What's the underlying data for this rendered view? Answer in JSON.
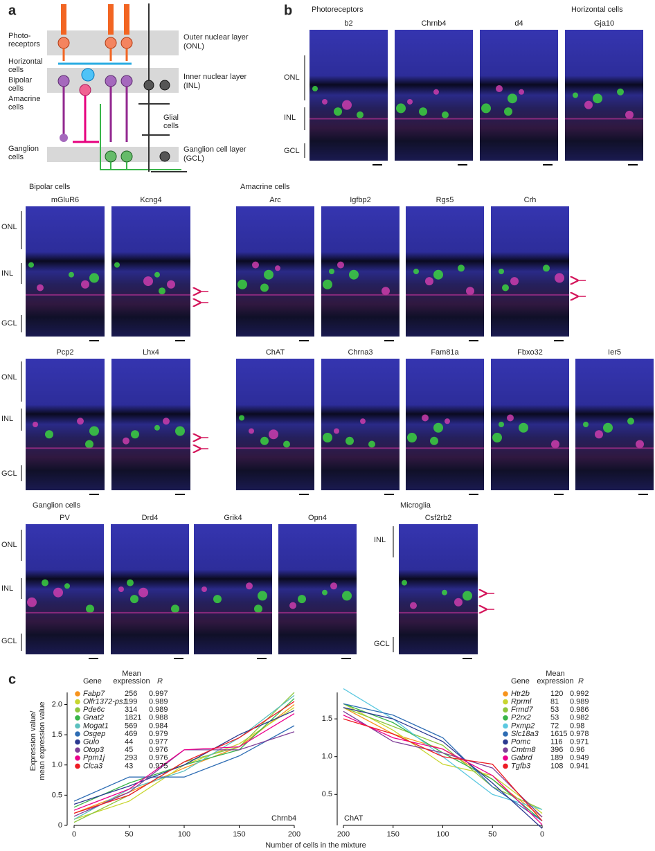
{
  "panel_a": {
    "label": "a",
    "cell_types": [
      [
        "Photo-",
        "receptors"
      ],
      [
        "Horizontal",
        "cells"
      ],
      [
        "Bipolar",
        "cells"
      ],
      [
        "Amacrine",
        "cells"
      ],
      [
        "Ganglion",
        "cells"
      ],
      [
        "Glial",
        "cells"
      ]
    ],
    "layers": [
      [
        "Outer nuclear layer",
        "(ONL)"
      ],
      [
        "Inner nuclear layer",
        "(INL)"
      ],
      [
        "Ganglion cell layer",
        "(GCL)"
      ]
    ]
  },
  "panel_b": {
    "label": "b",
    "layer_labels": [
      "ONL",
      "INL",
      "GCL"
    ],
    "rows": [
      [
        {
          "title": "Photoreceptors",
          "genes": [
            "b2",
            "Chrnb4",
            "d4"
          ]
        },
        {
          "title": "Horizontal cells",
          "genes": [
            "Gja10"
          ]
        }
      ],
      [
        {
          "title": "Bipolar cells",
          "genes": [
            "mGluR6",
            "Kcng4"
          ]
        },
        {
          "title": "Amacrine cells",
          "genes": [
            "Arc",
            "Igfbp2",
            "Rgs5",
            "Crh"
          ]
        }
      ],
      [
        {
          "genes": [
            "Pcp2",
            "Lhx4"
          ]
        },
        {
          "genes": [
            "ChAT",
            "Chrna3",
            "Fam81a",
            "Fbxo32",
            "Ier5"
          ]
        }
      ],
      [
        {
          "title": "Ganglion cells",
          "genes": [
            "PV",
            "Drd4",
            "Grik4",
            "Opn4"
          ]
        },
        {
          "title": "Microglia",
          "genes": [
            "Csf2rb2"
          ]
        }
      ]
    ]
  },
  "panel_c": {
    "label": "c",
    "y_label": [
      "Expression value/",
      "mean expression value"
    ],
    "x_label": "Number of cells in the mixture",
    "table_header": [
      "Gene",
      [
        "Mean",
        "expression"
      ],
      "R"
    ],
    "charts": [
      {
        "type": "line",
        "annotation": "Chrnb4",
        "x": [
          0,
          50,
          100,
          150,
          200
        ],
        "xlim": [
          0,
          200
        ],
        "xticks": [
          0,
          50,
          100,
          150,
          200
        ],
        "ylim": [
          0,
          2.2
        ],
        "yticks": [
          0,
          0.5,
          {
            "value": 1,
            "label": "1.0"
          },
          1.5,
          {
            "value": 2,
            "label": "2.0"
          }
        ],
        "series": [
          {
            "name": "Fabp7",
            "mean_expression": 256,
            "R": 0.997,
            "color": "#f7941d",
            "values": [
              0.2,
              0.55,
              0.95,
              1.3,
              2.0
            ]
          },
          {
            "name": "Olfr1372-ps1",
            "mean_expression": 199,
            "R": 0.989,
            "color": "#c8d630",
            "values": [
              0.1,
              0.4,
              1.0,
              1.35,
              1.95
            ]
          },
          {
            "name": "Pde6c",
            "mean_expression": 314,
            "R": 0.989,
            "color": "#8dc63f",
            "values": [
              0.05,
              0.5,
              1.05,
              1.3,
              2.2
            ]
          },
          {
            "name": "Gnat2",
            "mean_expression": 1821,
            "R": 0.988,
            "color": "#39b54a",
            "values": [
              0.3,
              0.7,
              1.0,
              1.25,
              2.1
            ]
          },
          {
            "name": "Mogat1",
            "mean_expression": 569,
            "R": 0.984,
            "color": "#5bc0be",
            "values": [
              0.1,
              0.6,
              0.9,
              1.45,
              2.15
            ]
          },
          {
            "name": "Osgep",
            "mean_expression": 469,
            "R": 0.979,
            "color": "#2e6db4",
            "values": [
              0.4,
              0.8,
              0.8,
              1.15,
              1.65
            ]
          },
          {
            "name": "Gulo",
            "mean_expression": 44,
            "R": 0.977,
            "color": "#2b3990",
            "values": [
              0.35,
              0.65,
              1.0,
              1.5,
              1.9
            ]
          },
          {
            "name": "Otop3",
            "mean_expression": 45,
            "R": 0.976,
            "color": "#7f3f98",
            "values": [
              0.15,
              0.55,
              1.25,
              1.25,
              1.55
            ]
          },
          {
            "name": "Ppm1j",
            "mean_expression": 293,
            "R": 0.976,
            "color": "#ec008c",
            "values": [
              0.25,
              0.6,
              1.25,
              1.3,
              1.85
            ]
          },
          {
            "name": "Clca3",
            "mean_expression": 43,
            "R": 0.975,
            "color": "#ed1c24",
            "values": [
              0.2,
              0.5,
              1.05,
              1.45,
              2.05
            ]
          }
        ]
      },
      {
        "type": "line",
        "annotation": "ChAT",
        "x": [
          0,
          50,
          100,
          150,
          200
        ],
        "xlim": [
          200,
          0
        ],
        "xticks": [
          200,
          150,
          100,
          50,
          0
        ],
        "ylim": [
          0.09,
          1.85
        ],
        "yticks": [
          0.5,
          {
            "value": 1,
            "label": "1.0"
          },
          1.5
        ],
        "series": [
          {
            "name": "Htr2b",
            "mean_expression": 120,
            "R": 0.992,
            "color": "#f7941d",
            "values": [
              0.2,
              0.7,
              1.1,
              1.3,
              1.65
            ]
          },
          {
            "name": "Rprml",
            "mean_expression": 81,
            "R": 0.989,
            "color": "#c8d630",
            "values": [
              0.25,
              0.75,
              0.9,
              1.35,
              1.7
            ]
          },
          {
            "name": "Frmd7",
            "mean_expression": 53,
            "R": 0.986,
            "color": "#8dc63f",
            "values": [
              0.3,
              0.6,
              1.15,
              1.4,
              1.65
            ]
          },
          {
            "name": "P2rx2",
            "mean_expression": 53,
            "R": 0.982,
            "color": "#39b54a",
            "values": [
              0.15,
              0.7,
              1.05,
              1.45,
              1.7
            ]
          },
          {
            "name": "Pxmp2",
            "mean_expression": 72,
            "R": 0.98,
            "color": "#5bc8e0",
            "values": [
              0.3,
              0.5,
              1.0,
              1.5,
              1.9
            ]
          },
          {
            "name": "Slc18a3",
            "mean_expression": 1615,
            "R": 0.978,
            "color": "#2e6db4",
            "values": [
              0.15,
              0.6,
              1.25,
              1.55,
              1.7
            ]
          },
          {
            "name": "Pomc",
            "mean_expression": 116,
            "R": 0.971,
            "color": "#2b3990",
            "values": [
              0.05,
              0.65,
              1.2,
              1.5,
              1.65
            ]
          },
          {
            "name": "Cmtm8",
            "mean_expression": 396,
            "R": 0.96,
            "color": "#7f3f98",
            "values": [
              0.2,
              0.85,
              1.05,
              1.2,
              1.6
            ]
          },
          {
            "name": "Gabrd",
            "mean_expression": 189,
            "R": 0.949,
            "color": "#ec008c",
            "values": [
              0.1,
              0.75,
              1.1,
              1.25,
              1.55
            ]
          },
          {
            "name": "Tgfb3",
            "mean_expression": 108,
            "R": 0.941,
            "color": "#ed1c24",
            "values": [
              0.15,
              0.9,
              1.0,
              1.3,
              1.5
            ]
          }
        ]
      }
    ]
  }
}
